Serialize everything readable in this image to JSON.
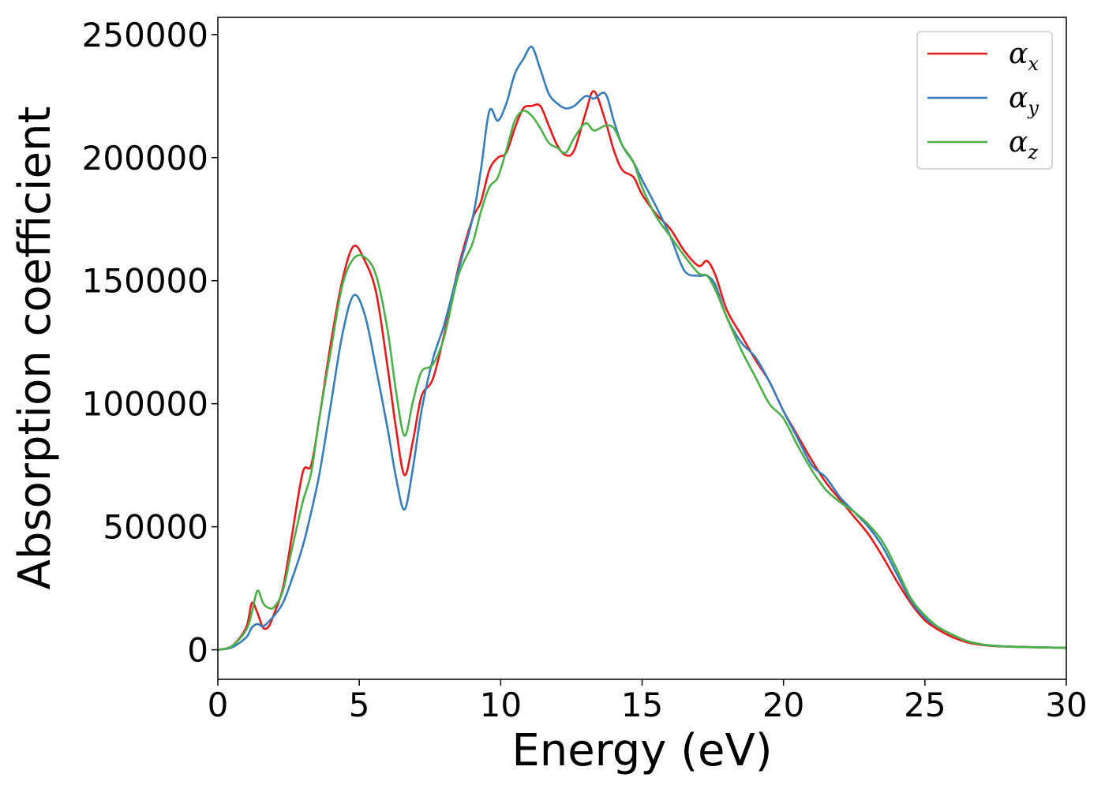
{
  "chart_data": {
    "type": "line",
    "xlabel": "Energy (eV)",
    "ylabel": "Absorption coefficient",
    "xlim": [
      0,
      30
    ],
    "ylim": [
      -12000,
      257000
    ],
    "xticks": [
      0,
      5,
      10,
      15,
      20,
      25,
      30
    ],
    "yticks": [
      0,
      50000,
      100000,
      150000,
      200000,
      250000
    ],
    "xtick_labels": [
      "0",
      "5",
      "10",
      "15",
      "20",
      "25",
      "30"
    ],
    "ytick_labels": [
      "0",
      "50000",
      "100000",
      "150000",
      "200000",
      "250000"
    ],
    "grid": false,
    "legend_position": "top-right",
    "x": [
      0,
      0.5,
      1.0,
      1.2,
      1.4,
      1.6,
      1.8,
      2.0,
      2.3,
      2.6,
      3.0,
      3.3,
      3.6,
      4.0,
      4.4,
      4.8,
      5.2,
      5.6,
      6.0,
      6.3,
      6.6,
      6.9,
      7.2,
      7.6,
      8.0,
      8.5,
      9.0,
      9.3,
      9.6,
      9.9,
      10.2,
      10.5,
      10.8,
      11.1,
      11.4,
      11.7,
      12.0,
      12.3,
      12.6,
      13.0,
      13.3,
      13.7,
      14.0,
      14.3,
      14.7,
      15.0,
      15.5,
      16.0,
      16.5,
      17.0,
      17.3,
      17.6,
      18.0,
      18.5,
      19.0,
      19.5,
      20.0,
      20.5,
      21.0,
      21.5,
      22.0,
      22.5,
      23.0,
      23.5,
      24.0,
      24.5,
      25.0,
      25.5,
      26.0,
      26.5,
      27.0,
      27.5,
      28.0,
      29.0,
      30.0
    ],
    "series": [
      {
        "name": "α_x",
        "color": "#e41a1c",
        "values": [
          0,
          1500,
          9000,
          19000,
          15000,
          9000,
          9500,
          15000,
          25000,
          45000,
          72000,
          75000,
          95000,
          125000,
          150000,
          164000,
          158000,
          145000,
          115000,
          90000,
          71000,
          85000,
          103000,
          110000,
          128000,
          155000,
          175000,
          182000,
          195000,
          200000,
          202000,
          212000,
          220000,
          221000,
          221000,
          213000,
          205000,
          201000,
          203000,
          218000,
          227000,
          215000,
          203000,
          195000,
          192000,
          185000,
          177000,
          171000,
          162000,
          156000,
          158000,
          152000,
          138000,
          128000,
          118000,
          109000,
          97000,
          87000,
          77000,
          68000,
          61000,
          54000,
          47000,
          38000,
          28000,
          19000,
          12000,
          8000,
          5000,
          3000,
          2000,
          1500,
          1300,
          1000,
          800
        ]
      },
      {
        "name": "α_y",
        "color": "#377eb8",
        "values": [
          0,
          1000,
          5000,
          9000,
          10500,
          9500,
          11500,
          14000,
          19000,
          28000,
          42000,
          56000,
          72000,
          100000,
          128000,
          144000,
          136000,
          114000,
          90000,
          70000,
          57000,
          74000,
          97000,
          118000,
          132000,
          154000,
          175000,
          195000,
          219000,
          215000,
          222000,
          234000,
          240000,
          245000,
          236000,
          226000,
          222000,
          220000,
          221000,
          225000,
          224000,
          226000,
          215000,
          205000,
          198000,
          191000,
          180000,
          168000,
          154000,
          152000,
          152000,
          148000,
          135000,
          125000,
          119000,
          109000,
          97000,
          86000,
          75000,
          70000,
          62000,
          56000,
          50000,
          42000,
          31000,
          20000,
          13000,
          9000,
          6000,
          3500,
          2200,
          1600,
          1300,
          1000,
          800
        ]
      },
      {
        "name": "α_z",
        "color": "#4daf4a",
        "values": [
          0,
          1500,
          8000,
          15000,
          24000,
          19000,
          17000,
          17500,
          24000,
          40000,
          60000,
          72000,
          95000,
          122000,
          148000,
          159000,
          159500,
          152000,
          130000,
          105000,
          87000,
          101000,
          113000,
          116000,
          127000,
          152000,
          165000,
          178000,
          188000,
          192000,
          203000,
          215000,
          219000,
          217000,
          212000,
          206000,
          204000,
          202000,
          208000,
          214000,
          211000,
          213000,
          212000,
          205000,
          198000,
          188000,
          176000,
          168000,
          160000,
          153000,
          152000,
          146000,
          135000,
          122000,
          111000,
          100000,
          94000,
          83000,
          73000,
          65000,
          60000,
          56000,
          51000,
          44000,
          33000,
          21000,
          14000,
          9000,
          6000,
          3500,
          2200,
          1600,
          1300,
          1000,
          800
        ]
      }
    ]
  }
}
